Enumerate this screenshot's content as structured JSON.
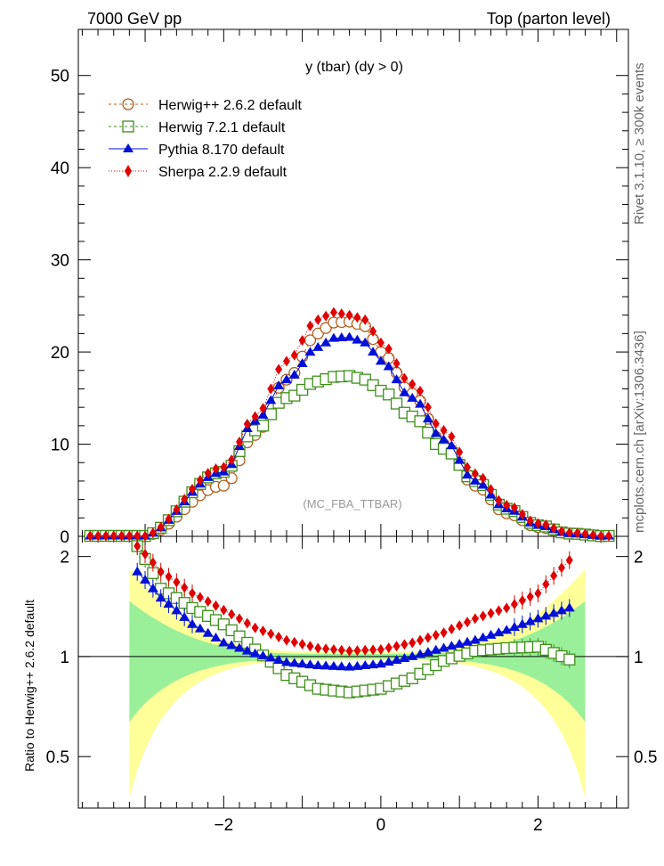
{
  "header": {
    "left": "7000 GeV pp",
    "right": "Top (parton level)"
  },
  "side_labels": {
    "rivet": "Rivet 3.1.10, ≥ 300k events",
    "mcplots": "mcplots.cern.ch [arXiv:1306.3436]"
  },
  "chart_data": [
    {
      "type": "line",
      "title": "y (tbar) (dy > 0)",
      "watermark": "(MC_FBA_TTBAR)",
      "xlabel": "",
      "ylabel": "",
      "xlim": [
        -3.85,
        3.15
      ],
      "ylim": [
        0,
        55
      ],
      "yticks": [
        "0",
        "10",
        "20",
        "30",
        "40",
        "50"
      ],
      "legend_position": "top-left",
      "series": [
        {
          "name": "Herwig++ 2.6.2 default",
          "color": "#b05f1e",
          "marker": "open-circle",
          "line": "dashed",
          "x": [
            -2.0,
            -1.6,
            -1.2,
            -0.8,
            -0.6,
            -0.4,
            -0.2,
            0.0,
            0.4,
            0.8,
            1.2,
            1.6,
            2.0,
            2.4
          ],
          "y": [
            5.5,
            11.0,
            17.0,
            22.0,
            23.2,
            23.3,
            22.8,
            20.0,
            15.5,
            10.0,
            5.5,
            2.5,
            1.0,
            0.3
          ]
        },
        {
          "name": "Herwig 7.2.1 default",
          "color": "#3f8f1a",
          "marker": "open-square",
          "line": "dashed",
          "x": [
            -2.0,
            -1.6,
            -1.2,
            -0.8,
            -0.6,
            -0.4,
            -0.2,
            0.0,
            0.4,
            0.8,
            1.2,
            1.6,
            2.0,
            2.4
          ],
          "y": [
            7.0,
            11.5,
            15.0,
            16.8,
            17.3,
            17.4,
            17.0,
            15.8,
            13.0,
            9.5,
            6.0,
            3.0,
            1.2,
            0.3
          ]
        },
        {
          "name": "Pythia 8.170 default",
          "color": "#0010d8",
          "marker": "filled-triangle",
          "line": "solid",
          "x": [
            -2.0,
            -1.6,
            -1.2,
            -0.8,
            -0.6,
            -0.4,
            -0.2,
            0.0,
            0.4,
            0.8,
            1.2,
            1.6,
            2.0,
            2.4
          ],
          "y": [
            7.0,
            12.5,
            17.0,
            20.5,
            21.5,
            21.6,
            21.0,
            19.0,
            15.0,
            10.5,
            6.0,
            3.0,
            1.2,
            0.3
          ]
        },
        {
          "name": "Sherpa 2.2.9 default",
          "color": "#e00000",
          "marker": "filled-diamond",
          "line": "dotted",
          "x": [
            -2.0,
            -1.6,
            -1.2,
            -0.8,
            -0.6,
            -0.4,
            -0.2,
            0.0,
            0.4,
            0.8,
            1.2,
            1.6,
            2.0,
            2.4
          ],
          "y": [
            7.5,
            13.0,
            19.0,
            23.5,
            24.3,
            24.0,
            23.5,
            21.0,
            16.5,
            11.5,
            6.8,
            3.4,
            1.4,
            0.4
          ]
        }
      ]
    },
    {
      "type": "line",
      "title": "",
      "xlabel": "",
      "ylabel": "Ratio to Herwig++ 2.6.2 default",
      "xlim": [
        -3.85,
        3.15
      ],
      "ylim": [
        0.35,
        2.3
      ],
      "xticks": [
        "−2",
        "0",
        "2"
      ],
      "yticks": [
        "0.5",
        "1",
        "2"
      ],
      "reference_line": 1,
      "series": [
        {
          "name": "Herwig 7.2.1 default",
          "color": "#3f8f1a",
          "x": [
            -3.1,
            -2.8,
            -2.4,
            -2.0,
            -1.6,
            -1.2,
            -0.8,
            -0.4,
            0.0,
            0.4,
            0.8,
            1.2,
            1.6,
            2.0,
            2.4
          ],
          "y": [
            2.15,
            1.6,
            1.4,
            1.25,
            1.05,
            0.88,
            0.8,
            0.78,
            0.8,
            0.86,
            0.97,
            1.04,
            1.06,
            1.07,
            0.98
          ]
        },
        {
          "name": "Pythia 8.170 default",
          "color": "#0010d8",
          "x": [
            -3.1,
            -2.8,
            -2.4,
            -2.0,
            -1.6,
            -1.2,
            -0.8,
            -0.4,
            0.0,
            0.4,
            0.8,
            1.2,
            1.6,
            2.0,
            2.4
          ],
          "y": [
            1.8,
            1.5,
            1.25,
            1.1,
            1.02,
            0.96,
            0.94,
            0.93,
            0.95,
            1.0,
            1.06,
            1.12,
            1.2,
            1.3,
            1.4
          ]
        },
        {
          "name": "Sherpa 2.2.9 default",
          "color": "#e00000",
          "x": [
            -3.1,
            -2.8,
            -2.4,
            -2.0,
            -1.6,
            -1.2,
            -0.8,
            -0.4,
            0.0,
            0.4,
            0.8,
            1.2,
            1.6,
            2.0,
            2.4
          ],
          "y": [
            2.15,
            1.8,
            1.55,
            1.38,
            1.22,
            1.12,
            1.06,
            1.04,
            1.05,
            1.1,
            1.18,
            1.3,
            1.4,
            1.55,
            1.95
          ]
        }
      ]
    }
  ]
}
